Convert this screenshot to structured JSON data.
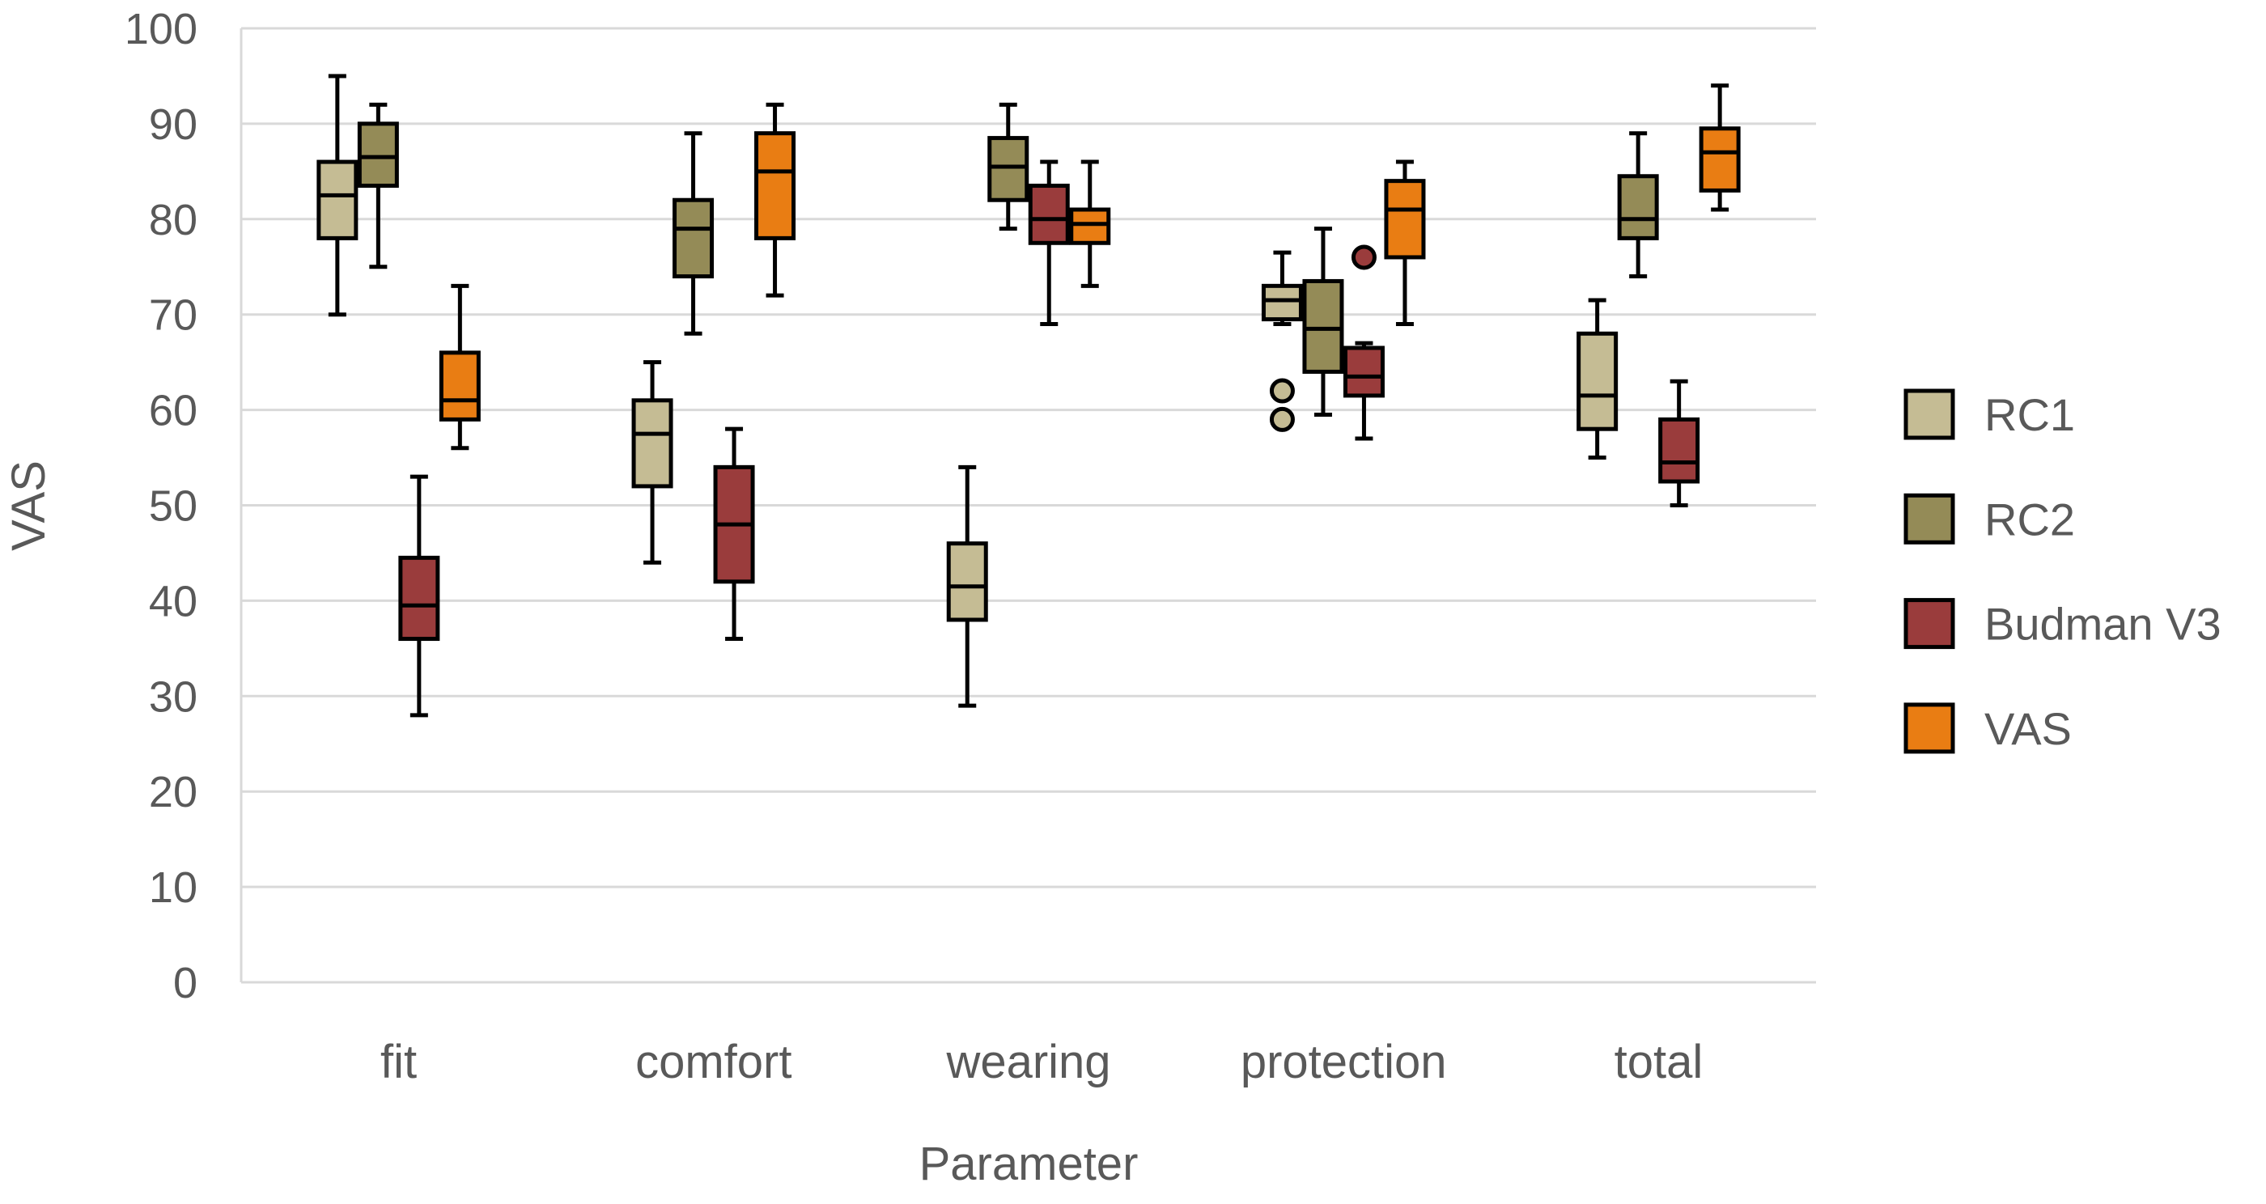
{
  "figure": {
    "background": "#FFFFFF",
    "text_color": "#595959",
    "gridline_color": "#D9D9D9",
    "box_outline_color": "#000000"
  },
  "chart_data": {
    "type": "boxplot",
    "title": "",
    "xlabel": "Parameter",
    "ylabel": "VAS",
    "ylim": [
      0,
      100
    ],
    "ytick_step": 10,
    "y_tick_labels": [
      "0",
      "10",
      "20",
      "30",
      "40",
      "50",
      "60",
      "70",
      "80",
      "90",
      "100"
    ],
    "grid": "horizontal-gridlines-on",
    "legend_position": "right",
    "categories": [
      "fit",
      "comfort",
      "wearing",
      "protection",
      "total"
    ],
    "series": [
      {
        "name": "RC1",
        "color": "#C5BC94",
        "boxes": [
          {
            "min": 70,
            "q1": 78,
            "median": 82.5,
            "q3": 86,
            "max": 95,
            "outliers": []
          },
          {
            "min": 44,
            "q1": 52,
            "median": 57.5,
            "q3": 61,
            "max": 65,
            "outliers": []
          },
          {
            "min": 29,
            "q1": 38,
            "median": 41.5,
            "q3": 46,
            "max": 54,
            "outliers": []
          },
          {
            "min": 69,
            "q1": 69.5,
            "median": 71.5,
            "q3": 73,
            "max": 76.5,
            "outliers": [
              62,
              59
            ]
          },
          {
            "min": 55,
            "q1": 58,
            "median": 61.5,
            "q3": 68,
            "max": 71.5,
            "outliers": []
          }
        ]
      },
      {
        "name": "RC2",
        "color": "#948B57",
        "boxes": [
          {
            "min": 75,
            "q1": 83.5,
            "median": 86.5,
            "q3": 90,
            "max": 92,
            "outliers": []
          },
          {
            "min": 68,
            "q1": 74,
            "median": 79,
            "q3": 82,
            "max": 89,
            "outliers": []
          },
          {
            "min": 79,
            "q1": 82,
            "median": 85.5,
            "q3": 88.5,
            "max": 92,
            "outliers": []
          },
          {
            "min": 59.5,
            "q1": 64,
            "median": 68.5,
            "q3": 73.5,
            "max": 79,
            "outliers": []
          },
          {
            "min": 74,
            "q1": 78,
            "median": 80,
            "q3": 84.5,
            "max": 89,
            "outliers": []
          }
        ]
      },
      {
        "name": "Budman V3",
        "color": "#9A3C3C",
        "boxes": [
          {
            "min": 28,
            "q1": 36,
            "median": 39.5,
            "q3": 44.5,
            "max": 53,
            "outliers": []
          },
          {
            "min": 36,
            "q1": 42,
            "median": 48,
            "q3": 54,
            "max": 58,
            "outliers": []
          },
          {
            "min": 69,
            "q1": 77.5,
            "median": 80,
            "q3": 83.5,
            "max": 86,
            "outliers": []
          },
          {
            "min": 57,
            "q1": 61.5,
            "median": 63.5,
            "q3": 66.5,
            "max": 67,
            "outliers": [
              76
            ]
          },
          {
            "min": 50,
            "q1": 52.5,
            "median": 54.5,
            "q3": 59,
            "max": 63,
            "outliers": []
          }
        ]
      },
      {
        "name": "VAS",
        "color": "#E97D13",
        "boxes": [
          {
            "min": 56,
            "q1": 59,
            "median": 61,
            "q3": 66,
            "max": 73,
            "outliers": []
          },
          {
            "min": 72,
            "q1": 78,
            "median": 85,
            "q3": 89,
            "max": 92,
            "outliers": []
          },
          {
            "min": 73,
            "q1": 77.5,
            "median": 79.5,
            "q3": 81,
            "max": 86,
            "outliers": []
          },
          {
            "min": 69,
            "q1": 76,
            "median": 81,
            "q3": 84,
            "max": 86,
            "outliers": []
          },
          {
            "min": 81,
            "q1": 83,
            "median": 87,
            "q3": 89.5,
            "max": 94,
            "outliers": []
          }
        ]
      }
    ]
  }
}
